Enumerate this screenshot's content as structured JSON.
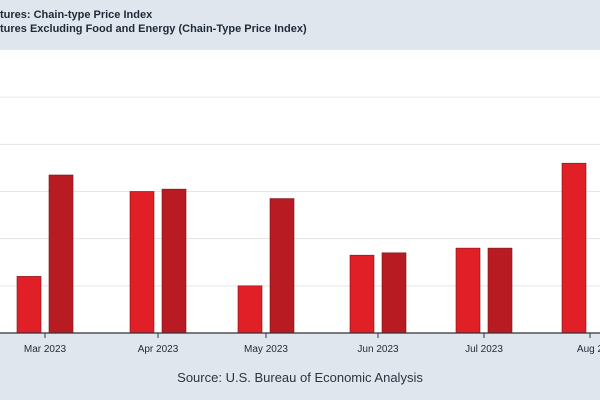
{
  "legend": {
    "series_1": "tures: Chain-type Price Index",
    "series_2": "tures Excluding Food and Energy (Chain-Type Price Index)"
  },
  "source": "Source: U.S. Bureau of Economic Analysis",
  "colors": {
    "series_1": "#e01f26",
    "series_2": "#b81c22",
    "grid": "#e3e6ea",
    "axis": "#333333",
    "background": "#dfe6ee",
    "plot_background": "#ffffff"
  },
  "chart_data": {
    "type": "bar",
    "categories": [
      "Mar 2023",
      "Apr 2023",
      "May 2023",
      "Jun 2023",
      "Jul 2023",
      "Aug 2"
    ],
    "series": [
      {
        "values": [
          1.2,
          3.0,
          1.0,
          1.65,
          1.8,
          3.6
        ]
      },
      {
        "values": [
          3.35,
          3.05,
          2.85,
          1.7,
          1.8,
          null
        ]
      }
    ],
    "ylim": [
      0,
      6
    ],
    "grid": true,
    "legend_position": "top"
  }
}
